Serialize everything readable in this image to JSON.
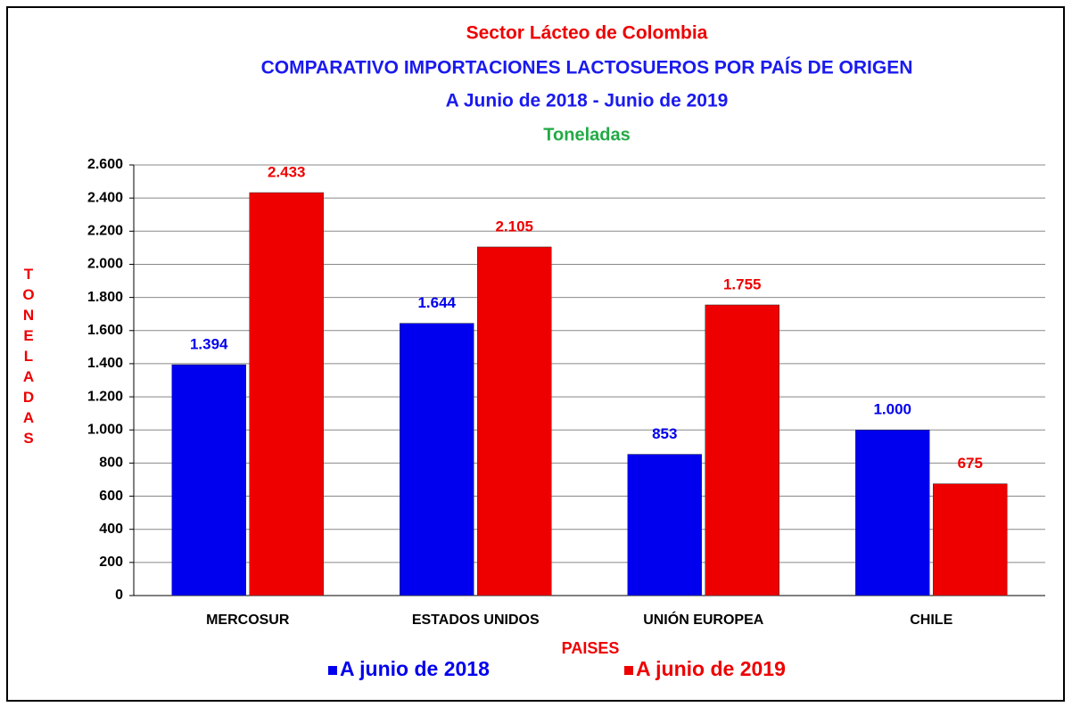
{
  "chart_data": {
    "type": "bar",
    "title": "Sector Lácteo de Colombia",
    "subtitle": [
      "COMPARATIVO IMPORTACIONES LACTOSUEROS POR PAÍS DE ORIGEN",
      "A Junio de 2018 - Junio de 2019",
      "Toneladas"
    ],
    "x_label": "PAISES",
    "y_label": "TONELADAS",
    "categories": [
      "MERCOSUR",
      "ESTADOS UNIDOS",
      "UNIÓN EUROPEA",
      "CHILE"
    ],
    "series": [
      {
        "name": "A junio de 2018",
        "color": "#0000ee",
        "values": [
          1394,
          1644,
          853,
          1000
        ],
        "value_labels": [
          "1.394",
          "1.644",
          "853",
          "1.000"
        ]
      },
      {
        "name": "A junio de 2019",
        "color": "#ee0000",
        "values": [
          2433,
          2105,
          1755,
          675
        ],
        "value_labels": [
          "2.433",
          "2.105",
          "1.755",
          "675"
        ]
      }
    ],
    "ylim": [
      0,
      2600
    ],
    "yticks": [
      0,
      200,
      400,
      600,
      800,
      {
        "value": 1000,
        "label": "1.000"
      },
      {
        "value": 1200,
        "label": "1.200"
      },
      {
        "value": 1400,
        "label": "1.400"
      },
      {
        "value": 1600,
        "label": "1.600"
      },
      {
        "value": 1800,
        "label": "1.800"
      },
      {
        "value": 2000,
        "label": "2.000"
      },
      {
        "value": 2200,
        "label": "2.200"
      },
      {
        "value": 2400,
        "label": "2.400"
      },
      {
        "value": 2600,
        "label": "2.600"
      }
    ],
    "grid": true,
    "legend": "bottom"
  }
}
